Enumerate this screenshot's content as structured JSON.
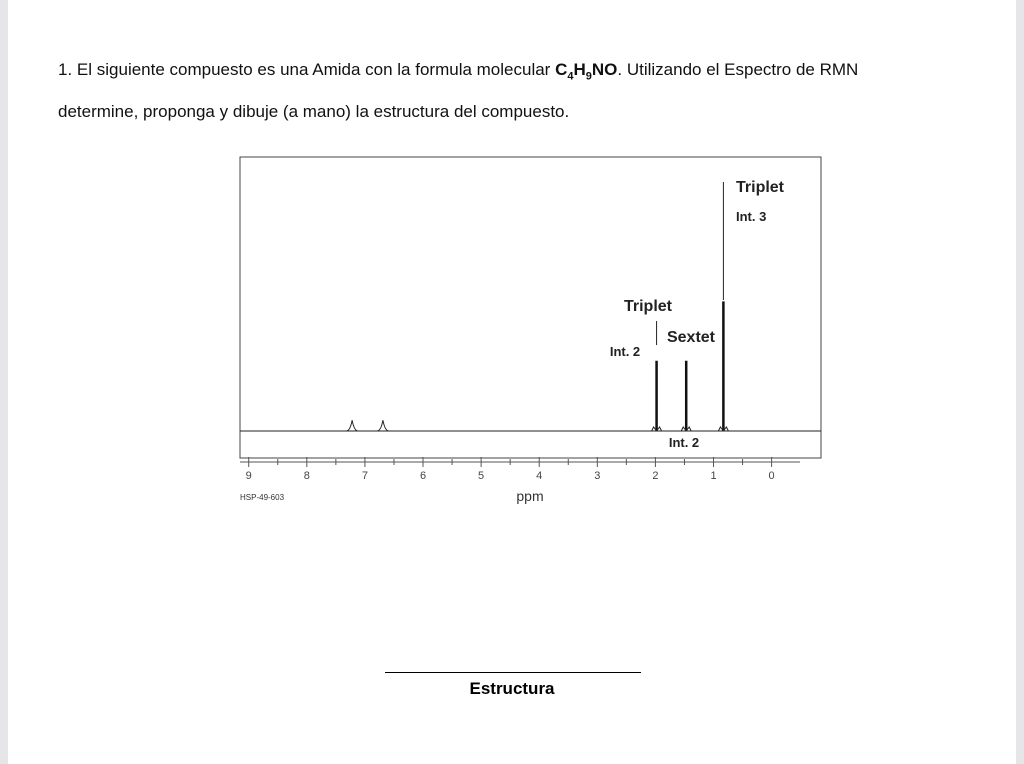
{
  "question": {
    "number": "1.",
    "text_before": "El siguiente compuesto es una Amida con la formula molecular ",
    "formula": {
      "c": "C",
      "c_count": "4",
      "h": "H",
      "h_count": "9",
      "rest": "NO"
    },
    "text_after": ". Utilizando el Espectro de RMN determine, proponga y dibuje (a mano) la estructura del compuesto."
  },
  "spectrum": {
    "type": "nmr",
    "xlabel": "ppm",
    "code": "HSP-49-603",
    "xlim": [
      9.15,
      -0.85
    ],
    "ylim": [
      0,
      1
    ],
    "xticks": [
      9,
      8,
      7,
      6,
      5,
      4,
      3,
      2,
      1,
      0
    ],
    "peaks": [
      {
        "ppm": 7.22,
        "height": 0.04
      },
      {
        "ppm": 6.69,
        "height": 0.04
      },
      {
        "ppm": 1.98,
        "height": 0.26,
        "multiplicity": "Triplet",
        "integration": "Int. 2"
      },
      {
        "ppm": 1.47,
        "height": 0.26,
        "multiplicity": "Sextet",
        "integration": "Int. 2"
      },
      {
        "ppm": 0.83,
        "height": 0.48,
        "multiplicity": "Triplet",
        "integration": "Int. 3"
      }
    ]
  },
  "answer": {
    "label": "Estructura"
  }
}
